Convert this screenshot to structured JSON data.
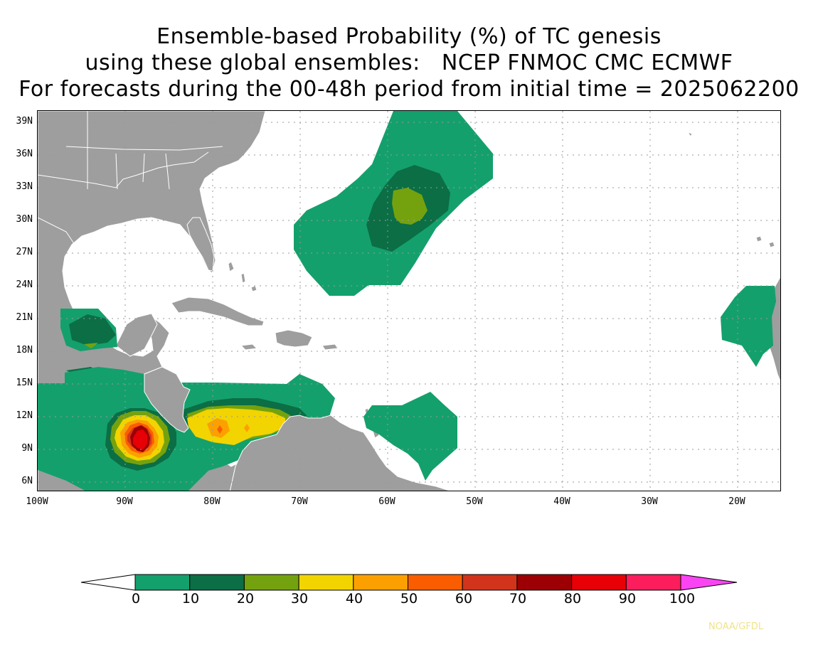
{
  "title": {
    "line1": "Ensemble-based Probability (%) of TC genesis",
    "line2": "using these global ensembles:   NCEP FNMOC CMC ECMWF",
    "line3": "For forecasts during the 00-48h period from initial time = 2025062200"
  },
  "map": {
    "lat_labels": [
      "39N",
      "36N",
      "33N",
      "30N",
      "27N",
      "24N",
      "21N",
      "18N",
      "15N",
      "12N",
      "9N",
      "6N"
    ],
    "lon_labels": [
      "100W",
      "90W",
      "80W",
      "70W",
      "60W",
      "50W",
      "40W",
      "30W",
      "20W"
    ],
    "colors": {
      "land": "#9e9e9e",
      "ocean": "#ffffff",
      "borders": "#ffffff",
      "grid": "#9a9a9a"
    }
  },
  "colorbar": {
    "labels": [
      "0",
      "10",
      "20",
      "30",
      "40",
      "50",
      "60",
      "70",
      "80",
      "90",
      "100"
    ],
    "colors": [
      "#14a06c",
      "#0b6e45",
      "#74a20e",
      "#f2d400",
      "#fba000",
      "#fa5d00",
      "#d2341b",
      "#9c0004",
      "#e70005",
      "#fb1d5c"
    ],
    "under_color": "#ffffff",
    "over_color": "#fa44f3"
  },
  "credit": "NOAA/GFDL"
}
